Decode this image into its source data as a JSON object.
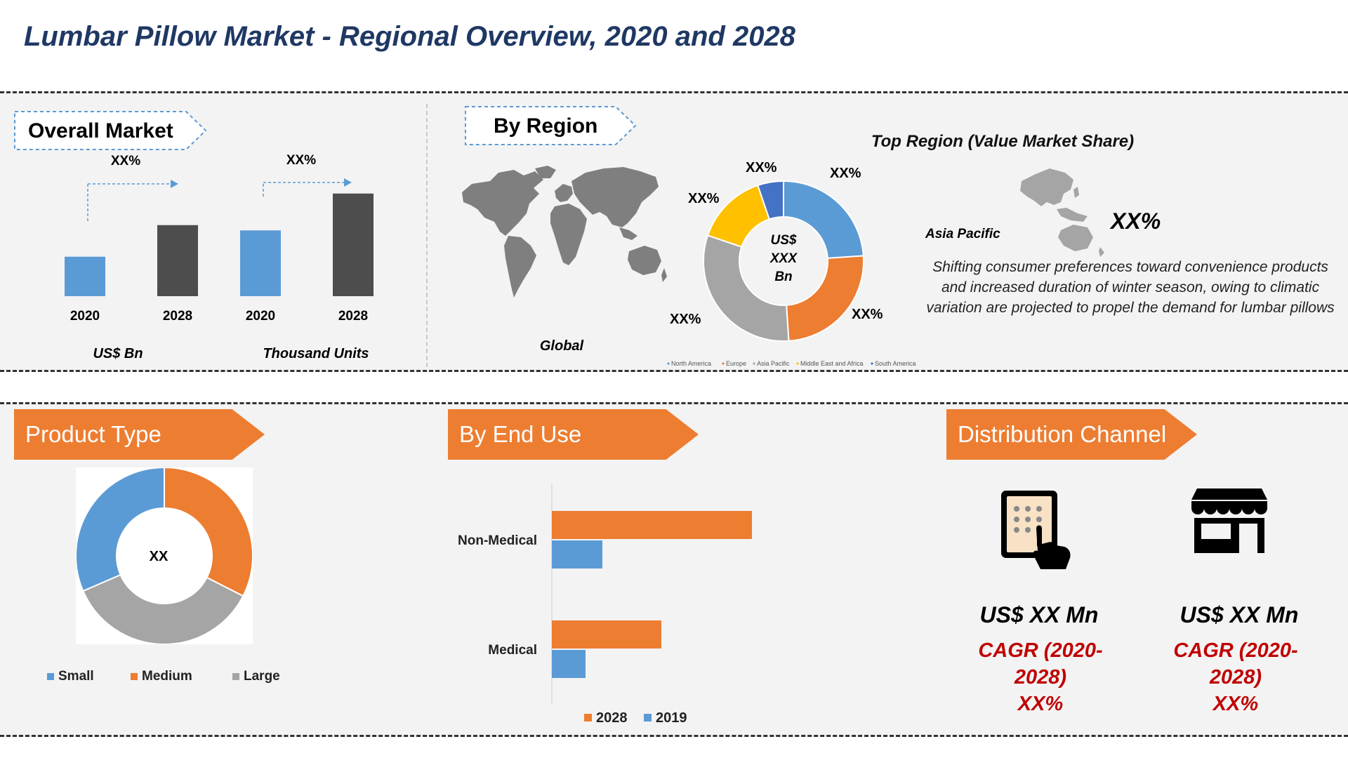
{
  "title": "Lumbar Pillow Market - Regional Overview, 2020 and 2028",
  "overall_market": {
    "heading": "Overall Market",
    "growth_label_1": "XX%",
    "growth_label_2": "XX%",
    "unit_1": "US$ Bn",
    "unit_2": "Thousand Units"
  },
  "by_region": {
    "heading": "By Region",
    "map_caption": "Global",
    "donut_center": [
      "US$",
      "XXX",
      "Bn"
    ],
    "slice_labels": [
      "XX%",
      "XX%",
      "XX%",
      "XX%",
      "XX%"
    ],
    "legend": [
      "North America",
      "Europe",
      "Asia Pacific",
      "Middle East and Africa",
      "South America"
    ]
  },
  "top_region": {
    "heading": "Top Region (Value Market Share)",
    "region_name": "Asia Pacific",
    "share": "XX%",
    "description": "Shifting consumer preferences toward convenience products and increased duration of winter season, owing to climatic variation are projected to propel the demand for lumbar pillows"
  },
  "product_type": {
    "heading": "Product Type",
    "donut_center": "XX",
    "legend": [
      "Small",
      "Medium",
      "Large"
    ]
  },
  "end_use": {
    "heading": "By End Use",
    "categories": [
      "Non-Medical",
      "Medical"
    ],
    "legend": [
      "2028",
      "2019"
    ]
  },
  "distribution_channel": {
    "heading": "Distribution Channel",
    "channels": [
      {
        "icon": "tablet-touch-icon",
        "value": "US$ XX Mn",
        "cagr": "CAGR (2020-",
        "cagr_2": "2028)",
        "cagr_value": "XX%"
      },
      {
        "icon": "store-icon",
        "value": "US$ XX Mn",
        "cagr": "CAGR (2020-",
        "cagr_2": "2028)",
        "cagr_value": "XX%"
      }
    ]
  },
  "colors": {
    "title": "#1f3864",
    "blue": "#5b9bd5",
    "dark_gray": "#4d4d4d",
    "orange": "#ed7d31",
    "gray": "#a5a5a5",
    "yellow": "#ffc000",
    "dark_blue": "#4472c4",
    "map_gray": "#7f7f7f",
    "cagr_red": "#c00000"
  },
  "chart_data": [
    {
      "type": "bar",
      "title": "Overall Market",
      "categories": [
        "2020",
        "2028"
      ],
      "xlabel": "US$ Bn",
      "values": [
        15,
        27
      ],
      "ylim": [
        0,
        40
      ]
    },
    {
      "type": "bar",
      "title": "Overall Market",
      "categories": [
        "2020",
        "2028"
      ],
      "xlabel": "Thousand Units",
      "values": [
        25,
        39
      ],
      "ylim": [
        0,
        40
      ]
    },
    {
      "type": "pie",
      "title": "By Region",
      "categories": [
        "North America",
        "Europe",
        "Asia Pacific",
        "Middle East and Africa",
        "South America"
      ],
      "values": [
        23,
        24,
        30,
        14,
        5
      ],
      "legend": "bottom"
    },
    {
      "type": "pie",
      "title": "Product Type",
      "categories": [
        "Small",
        "Medium",
        "Large"
      ],
      "values": [
        31.5,
        32.5,
        36
      ],
      "legend": "bottom"
    },
    {
      "type": "bar",
      "title": "By End Use",
      "orientation": "horizontal",
      "categories": [
        "Non-Medical",
        "Medical"
      ],
      "series": [
        {
          "name": "2028",
          "values": [
            95,
            52
          ]
        },
        {
          "name": "2019",
          "values": [
            24,
            16
          ]
        }
      ],
      "xlim": [
        0,
        100
      ],
      "legend": "bottom"
    }
  ]
}
